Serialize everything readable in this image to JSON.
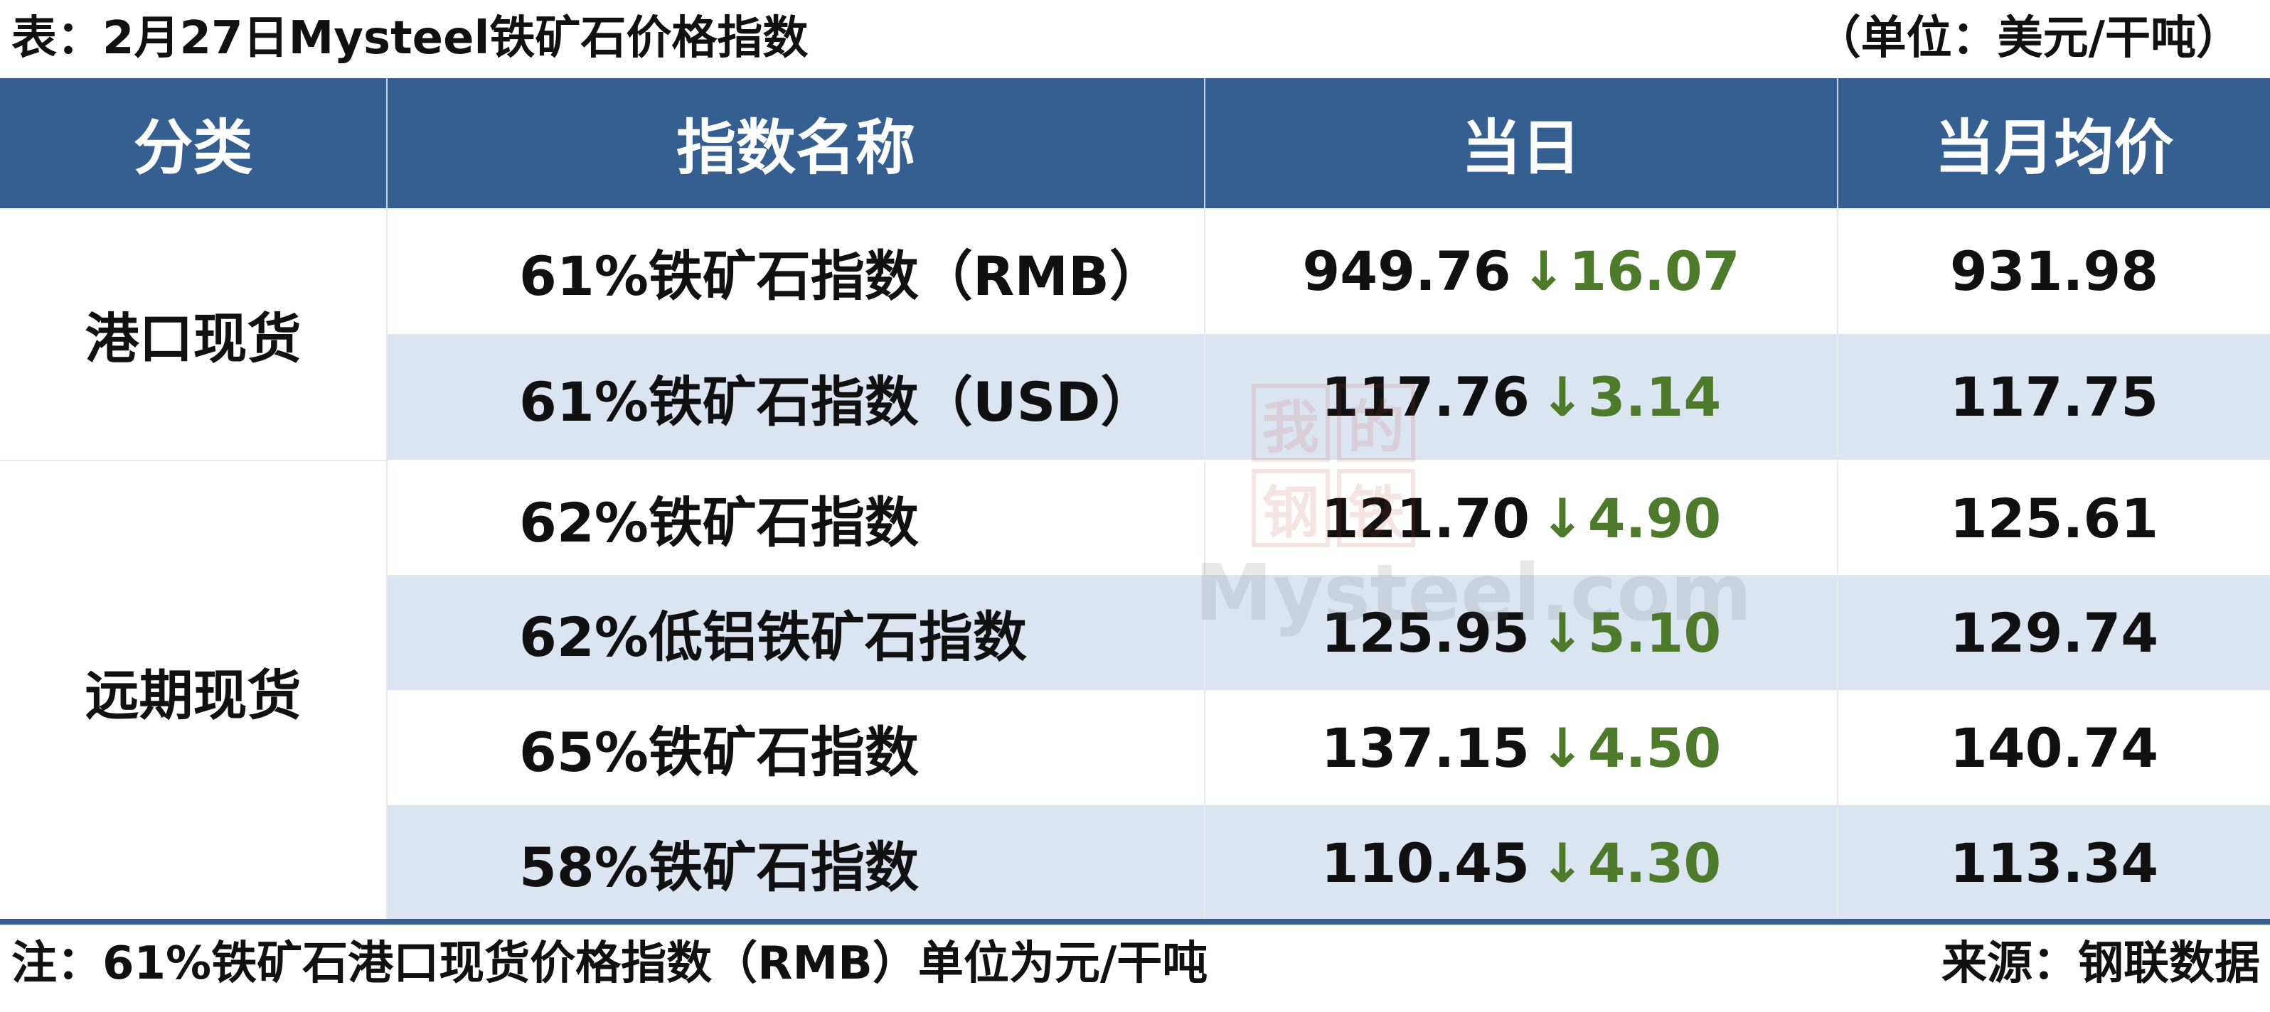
{
  "title": "表：2月27日Mysteel铁矿石价格指数",
  "unit": "（单位：美元/干吨）",
  "headers": [
    "分类",
    "指数名称",
    "当日",
    "当月均价"
  ],
  "categories": [
    "港口现货",
    "远期现货"
  ],
  "rows": [
    {
      "name": "61%铁矿石指数（RMB）",
      "today": "949.76",
      "arrow": "↓",
      "change": "16.07",
      "avg": "931.98"
    },
    {
      "name": "61%铁矿石指数（USD）",
      "today": "117.76",
      "arrow": "↓",
      "change": "3.14",
      "avg": "117.75"
    },
    {
      "name": "62%铁矿石指数",
      "today": "121.70",
      "arrow": "↓",
      "change": "4.90",
      "avg": "125.61"
    },
    {
      "name": "62%低铝铁矿石指数",
      "today": "125.95",
      "arrow": "↓",
      "change": "5.10",
      "avg": "129.74"
    },
    {
      "name": "65%铁矿石指数",
      "today": "137.15",
      "arrow": "↓",
      "change": "4.50",
      "avg": "140.74"
    },
    {
      "name": "58%铁矿石指数",
      "today": "110.45",
      "arrow": "↓",
      "change": "4.30",
      "avg": "113.34"
    }
  ],
  "watermark": {
    "chars": [
      "我",
      "的",
      "钢",
      "铁"
    ],
    "text": "Mysteel.com"
  },
  "footer": {
    "note": "注：61%铁矿石港口现货价格指数（RMB）单位为元/干吨",
    "source": "来源：钢联数据"
  },
  "colors": {
    "header_bg": "#365f91",
    "alt_row": "#dbe5f1",
    "change_green": "#4e7a2c"
  }
}
